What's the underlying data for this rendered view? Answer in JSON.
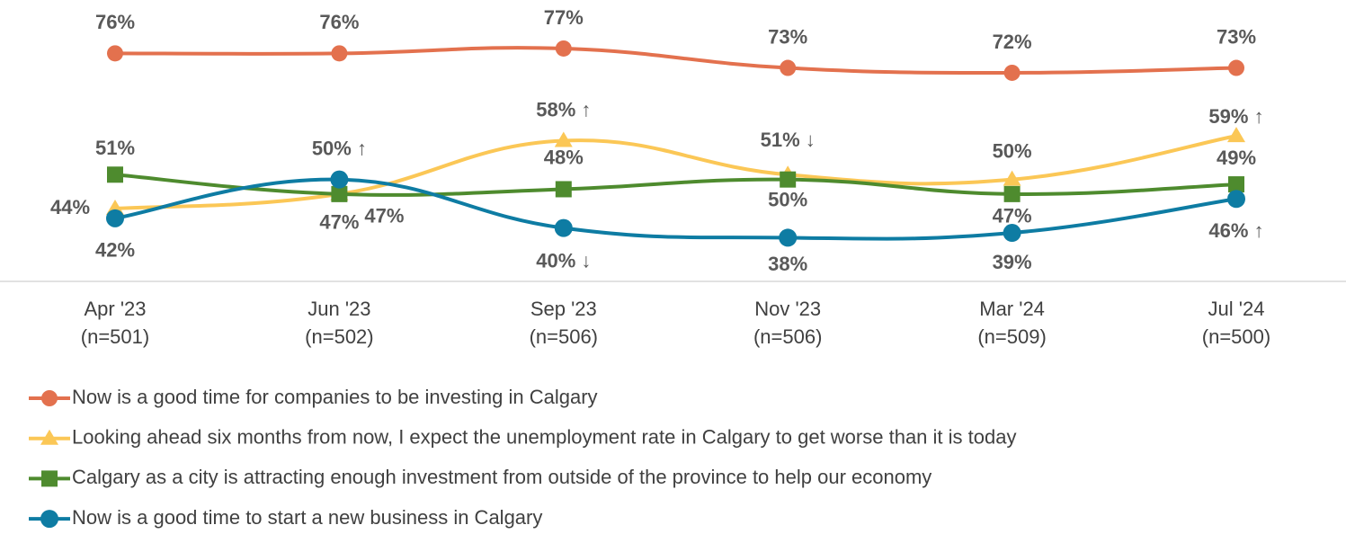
{
  "chart_data": {
    "type": "line",
    "categories": [
      "Apr '23",
      "Jun '23",
      "Sep '23",
      "Nov '23",
      "Mar '24",
      "Jul '24"
    ],
    "sample_sizes": [
      "(n=501)",
      "(n=502)",
      "(n=506)",
      "(n=506)",
      "(n=509)",
      "(n=500)"
    ],
    "ylim": [
      29,
      87
    ],
    "series": [
      {
        "name": "Now is a good time for companies to be investing in Calgary",
        "color": "#e3714e",
        "marker": "circle",
        "values": [
          76,
          76,
          77,
          73,
          72,
          73
        ],
        "value_labels": [
          "76%",
          "76%",
          "77%",
          "73%",
          "72%",
          "73%"
        ]
      },
      {
        "name": "Looking ahead six months from now, I expect the unemployment rate in Calgary to get worse than it is today",
        "color": "#fbc756",
        "marker": "triangle",
        "values": [
          44,
          47,
          58,
          51,
          50,
          59
        ],
        "value_labels": [
          "44%",
          "47%",
          "58% ↑",
          "51% ↓",
          "50%",
          "59% ↑"
        ]
      },
      {
        "name": "Calgary as a city is attracting enough investment from outside of the province to help our economy",
        "color": "#4e8b2e",
        "marker": "square",
        "values": [
          51,
          47,
          48,
          50,
          47,
          49
        ],
        "value_labels": [
          "51%",
          "47%",
          "48%",
          "50%",
          "47%",
          "49%"
        ]
      },
      {
        "name": "Now is a good time to start a new business in Calgary",
        "color": "#0e7ca3",
        "marker": "circle",
        "values": [
          42,
          50,
          40,
          38,
          39,
          46
        ],
        "value_labels": [
          "42%",
          "50% ↑",
          "40% ↓",
          "38%",
          "39%",
          "46% ↑"
        ]
      }
    ]
  }
}
